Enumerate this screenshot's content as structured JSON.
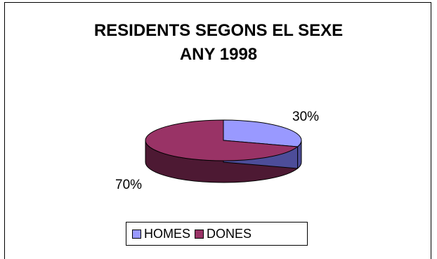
{
  "chart_data": {
    "type": "pie",
    "title": "RESIDENTS SEGONS EL SEXE",
    "subtitle": "ANY 1998",
    "categories": [
      "HOMES",
      "DONES"
    ],
    "values": [
      30,
      70
    ],
    "labels": [
      "30%",
      "70%"
    ],
    "colors": {
      "HOMES": "#9999ff",
      "DONES": "#993366",
      "HOMES_side": "#4d4d99",
      "DONES_side": "#4d1933"
    },
    "legend_position": "bottom",
    "three_d": true
  }
}
